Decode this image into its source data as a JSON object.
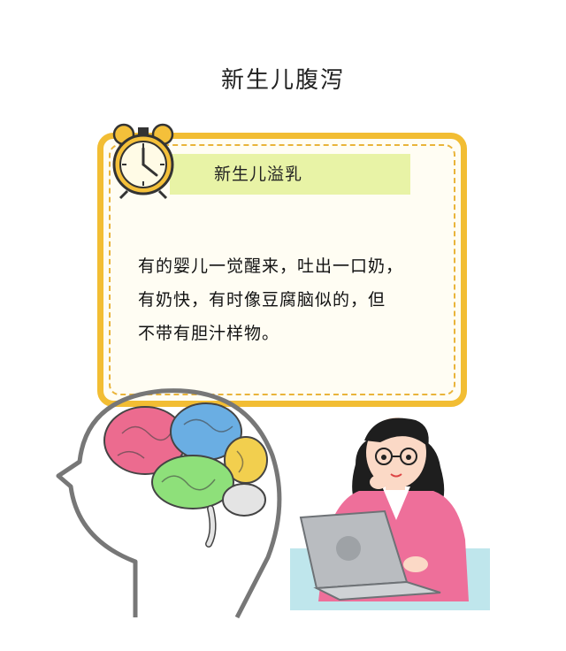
{
  "header": {
    "title": "新生儿腹泻"
  },
  "card": {
    "subtitle": "新生儿溢乳",
    "lines": [
      "有的婴儿一觉醒来，吐出一口奶，",
      "有奶快，有时像豆腐脑似的，但",
      "不带有胆汁样物。"
    ]
  },
  "colors": {
    "card_border": "#f2bd33",
    "subtitle_band": "#e8f3a6",
    "desk": "#bfe6ec",
    "sweater": "#ee6f9a"
  },
  "icons": {
    "clock": "alarm-clock-icon",
    "brain": "brain-head-illustration",
    "woman": "woman-at-laptop-illustration"
  }
}
